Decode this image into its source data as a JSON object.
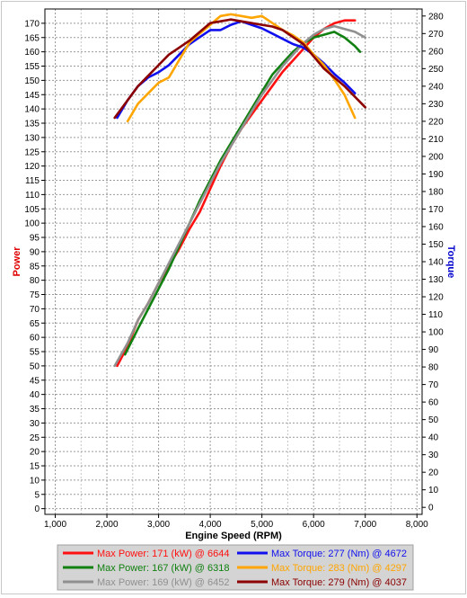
{
  "chart_data": {
    "type": "line",
    "xlabel": "Engine Speed (RPM)",
    "ylabel_left": "Power",
    "ylabel_right": "Torque",
    "xlim": [
      800,
      8100
    ],
    "ylim_left": [
      -2,
      175
    ],
    "ylim_right": [
      -4,
      284
    ],
    "x_ticks": [
      "1,000",
      "2,000",
      "3,000",
      "4,000",
      "5,000",
      "6,000",
      "7,000",
      "8,000"
    ],
    "x_tick_values": [
      1000,
      2000,
      3000,
      4000,
      5000,
      6000,
      7000,
      8000
    ],
    "y_left_ticks": [
      0,
      5,
      10,
      15,
      20,
      25,
      30,
      35,
      40,
      45,
      50,
      55,
      60,
      65,
      70,
      75,
      80,
      85,
      90,
      95,
      100,
      105,
      110,
      115,
      120,
      125,
      130,
      135,
      140,
      145,
      150,
      155,
      160,
      165,
      170
    ],
    "y_right_ticks": [
      0,
      10,
      20,
      30,
      40,
      50,
      60,
      70,
      80,
      90,
      100,
      110,
      120,
      130,
      140,
      150,
      160,
      170,
      180,
      190,
      200,
      210,
      220,
      230,
      240,
      250,
      260,
      270,
      280
    ],
    "grid": true,
    "legend_position": "bottom",
    "colors": {
      "power_label": "#e00000",
      "torque_label": "#0000cc"
    },
    "series": [
      {
        "name": "Max Power: 171 (kW) @ 6644",
        "axis": "left",
        "color": "#ff1010",
        "x": [
          2200,
          2400,
          2600,
          2800,
          3000,
          3200,
          3400,
          3600,
          3800,
          4000,
          4200,
          4400,
          4600,
          4800,
          5000,
          5200,
          5400,
          5600,
          5800,
          6000,
          6200,
          6400,
          6600,
          6800
        ],
        "y": [
          50,
          57,
          66,
          72,
          79,
          85,
          91,
          98,
          104,
          112,
          120,
          127,
          133,
          138,
          143,
          148,
          153,
          157,
          161,
          165,
          168,
          170,
          171,
          171
        ]
      },
      {
        "name": "Max Power: 167 (kW) @ 6318",
        "axis": "left",
        "color": "#108010",
        "x": [
          2350,
          2600,
          2800,
          3000,
          3200,
          3400,
          3600,
          3800,
          4000,
          4200,
          4400,
          4600,
          4800,
          5000,
          5200,
          5400,
          5600,
          5800,
          6000,
          6200,
          6400,
          6600,
          6800,
          6900
        ],
        "y": [
          54,
          63,
          70,
          77,
          84,
          92,
          100,
          108,
          115,
          122,
          128,
          134,
          140,
          146,
          152,
          156,
          160,
          163,
          165,
          166,
          167,
          165,
          162,
          160
        ]
      },
      {
        "name": "Max Power: 169 (kW) @ 6452",
        "axis": "left",
        "color": "#909090",
        "x": [
          2150,
          2400,
          2600,
          2800,
          3000,
          3200,
          3400,
          3600,
          3800,
          4000,
          4200,
          4400,
          4600,
          4800,
          5000,
          5200,
          5400,
          5600,
          5800,
          6000,
          6200,
          6400,
          6600,
          6800,
          7000
        ],
        "y": [
          50,
          58,
          66,
          72,
          79,
          86,
          93,
          100,
          107,
          114,
          121,
          127,
          133,
          139,
          145,
          150,
          155,
          159,
          163,
          166,
          168,
          169,
          168,
          167,
          165
        ]
      },
      {
        "name": "Max Torque: 277 (Nm) @ 4672",
        "axis": "right",
        "color": "#1010ee",
        "x": [
          2200,
          2400,
          2600,
          2800,
          3000,
          3200,
          3400,
          3600,
          3800,
          4000,
          4200,
          4400,
          4600,
          4800,
          5000,
          5200,
          5400,
          5600,
          5800,
          6000,
          6200,
          6400,
          6600,
          6800
        ],
        "y": [
          222,
          232,
          240,
          245,
          248,
          252,
          258,
          264,
          268,
          272,
          272,
          275,
          277,
          275,
          273,
          270,
          267,
          264,
          262,
          258,
          253,
          247,
          242,
          236
        ]
      },
      {
        "name": "Max Torque: 283 (Nm) @ 4297",
        "axis": "right",
        "color": "#ffa500",
        "x": [
          2400,
          2600,
          2800,
          3000,
          3200,
          3400,
          3600,
          3800,
          4000,
          4200,
          4400,
          4600,
          4800,
          5000,
          5200,
          5400,
          5600,
          5800,
          6000,
          6200,
          6400,
          6600,
          6800
        ],
        "y": [
          220,
          230,
          236,
          242,
          245,
          255,
          265,
          270,
          275,
          280,
          281,
          280,
          279,
          280,
          276,
          272,
          269,
          265,
          258,
          252,
          244,
          235,
          222
        ]
      },
      {
        "name": "Max Torque: 279 (Nm) @ 4037",
        "axis": "right",
        "color": "#8b0000",
        "x": [
          2150,
          2400,
          2600,
          2800,
          3000,
          3200,
          3400,
          3600,
          3800,
          4000,
          4200,
          4400,
          4600,
          4800,
          5000,
          5200,
          5400,
          5600,
          5800,
          6000,
          6200,
          6400,
          6600,
          6800,
          7000
        ],
        "y": [
          222,
          232,
          240,
          246,
          252,
          258,
          262,
          266,
          271,
          276,
          277,
          278,
          277,
          276,
          275,
          274,
          272,
          268,
          264,
          257,
          250,
          245,
          240,
          234,
          228
        ]
      }
    ]
  }
}
